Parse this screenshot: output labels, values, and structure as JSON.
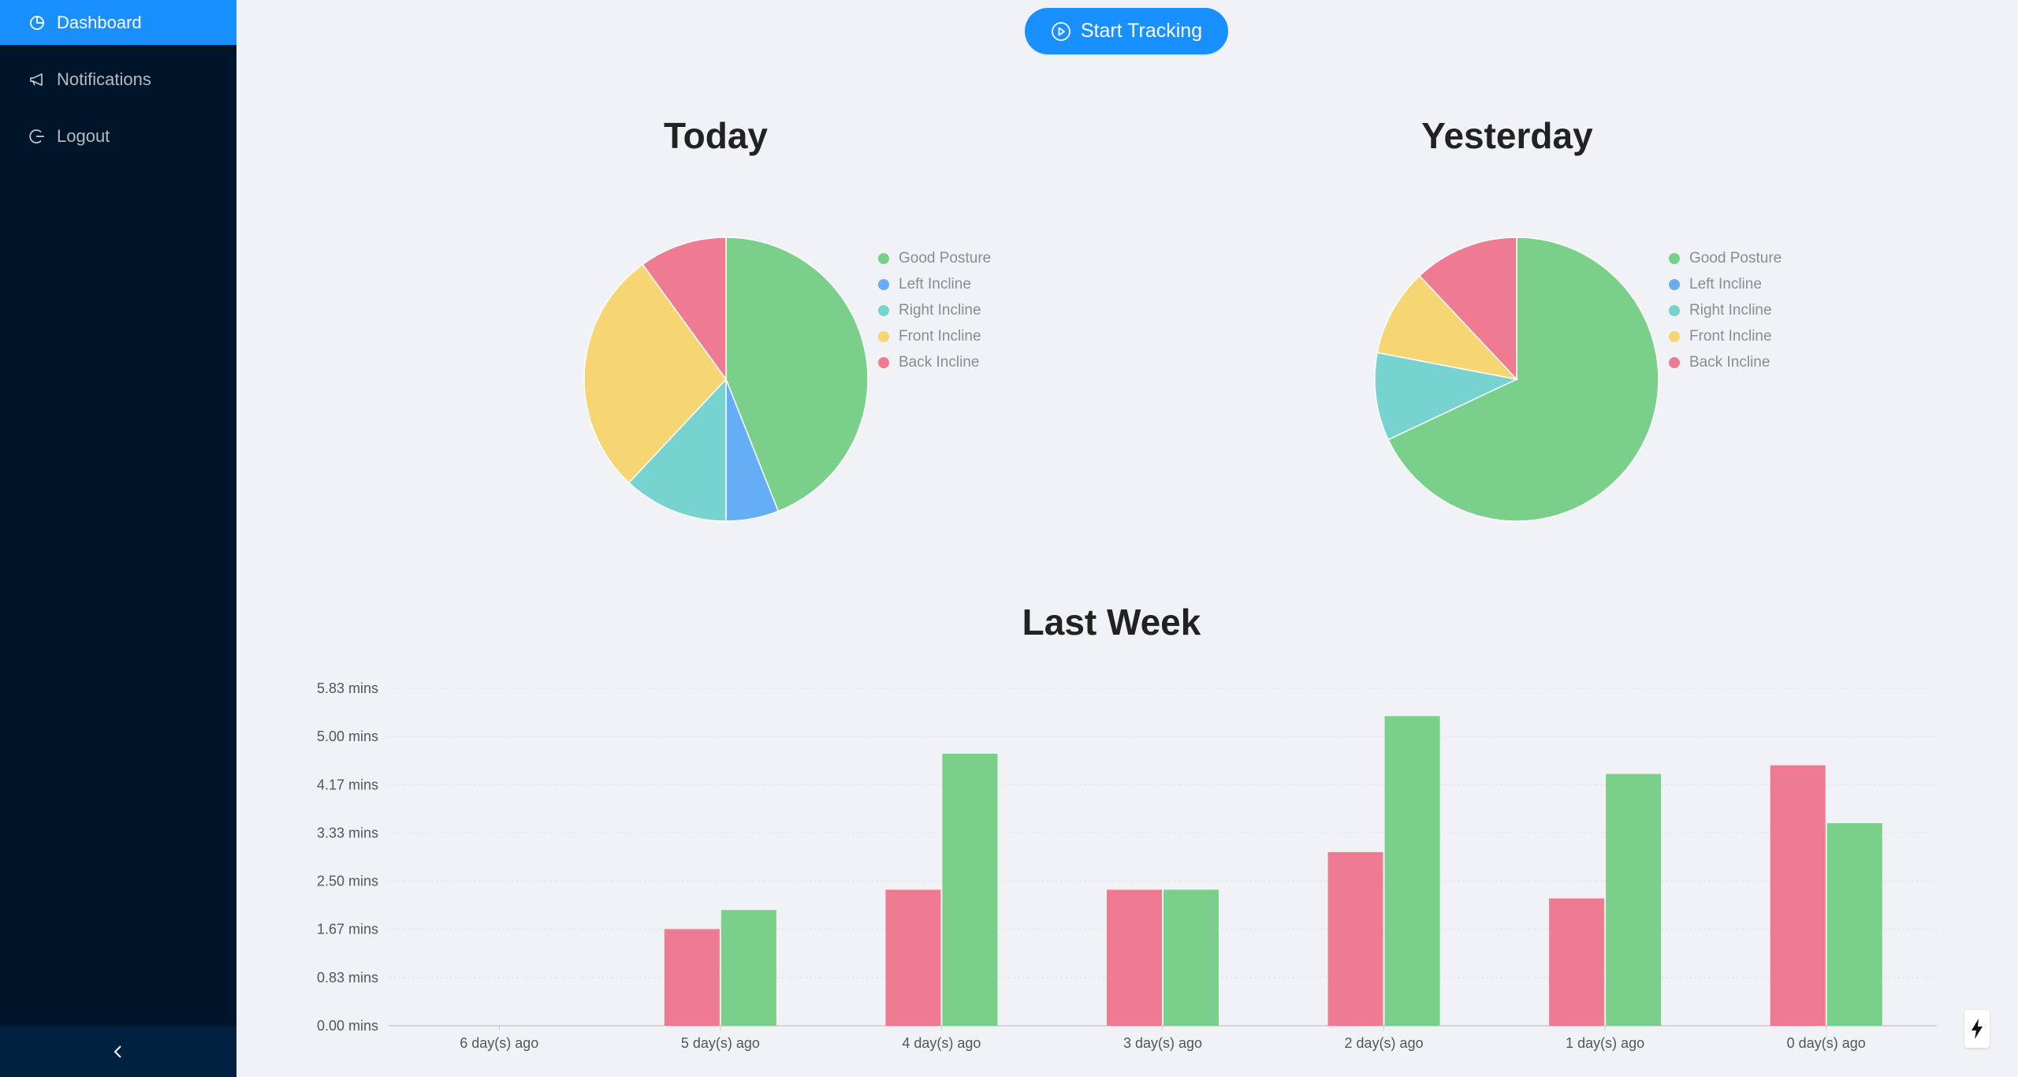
{
  "sidebar": {
    "items": [
      {
        "label": "Dashboard",
        "icon": "dashboard-icon",
        "active": true
      },
      {
        "label": "Notifications",
        "icon": "megaphone-icon",
        "active": false
      },
      {
        "label": "Logout",
        "icon": "logout-icon",
        "active": false
      }
    ],
    "collapse_icon": "chevron-left-icon"
  },
  "main": {
    "start_button": {
      "label": "Start Tracking",
      "icon": "play-circle-icon"
    },
    "today_title": "Today",
    "yesterday_title": "Yesterday",
    "last_week_title": "Last Week"
  },
  "colors": {
    "accent": "#1890ff",
    "sidebar_bg": "#001529",
    "good": "#7ad08b",
    "left": "#64aef5",
    "right": "#76d3cf",
    "front": "#f5d673",
    "back": "#ee7b91"
  },
  "legend": [
    "Good Posture",
    "Left Incline",
    "Right Incline",
    "Front Incline",
    "Back Incline"
  ],
  "chart_data": [
    {
      "type": "pie",
      "title": "Today",
      "categories": [
        "Good Posture",
        "Left Incline",
        "Right Incline",
        "Front Incline",
        "Back Incline"
      ],
      "values": [
        44,
        6,
        12,
        28,
        10
      ]
    },
    {
      "type": "pie",
      "title": "Yesterday",
      "categories": [
        "Good Posture",
        "Left Incline",
        "Right Incline",
        "Front Incline",
        "Back Incline"
      ],
      "values": [
        68,
        0,
        10,
        10,
        12
      ]
    },
    {
      "type": "bar",
      "title": "Last Week",
      "categories": [
        "6 day(s) ago",
        "5 day(s) ago",
        "4 day(s) ago",
        "3 day(s) ago",
        "2 day(s) ago",
        "1 day(s) ago",
        "0 day(s) ago"
      ],
      "series": [
        {
          "color": "#ee7b91",
          "values": [
            0,
            1.67,
            2.35,
            2.35,
            3.0,
            2.2,
            4.5
          ]
        },
        {
          "color": "#7ad08b",
          "values": [
            0,
            2.0,
            4.7,
            2.35,
            5.35,
            4.35,
            3.5
          ]
        }
      ],
      "yticks": [
        "0.00 mins",
        "0.83 mins",
        "1.67 mins",
        "2.50 mins",
        "3.33 mins",
        "4.17 mins",
        "5.00 mins",
        "5.83 mins"
      ],
      "ylim": [
        0,
        5.83
      ],
      "grid": true
    }
  ]
}
